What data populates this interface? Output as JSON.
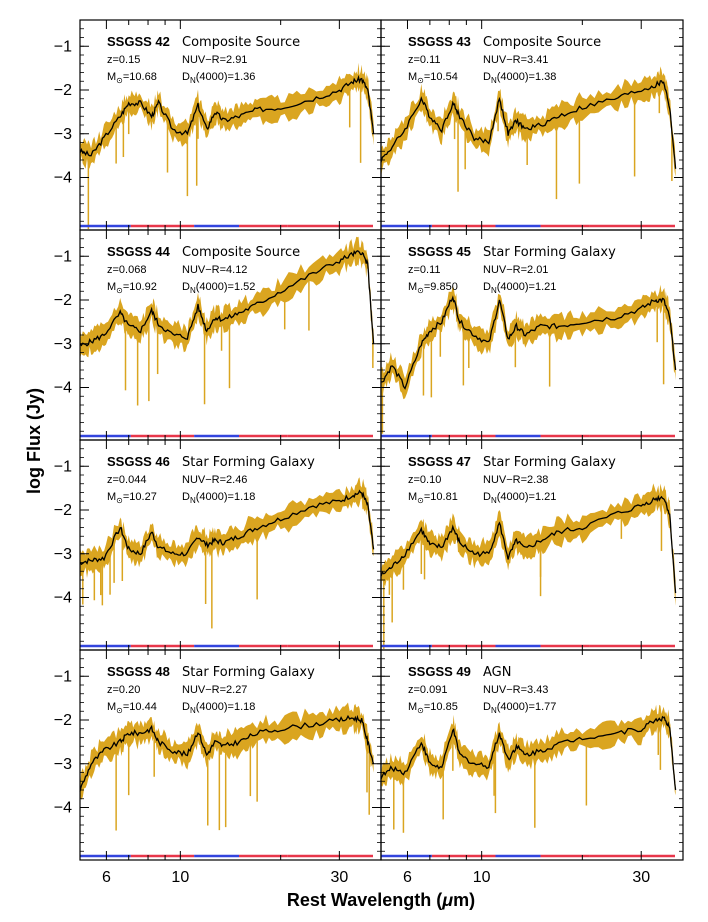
{
  "chart_data": {
    "type": "line",
    "xlabel": "Rest Wavelength (μm)",
    "ylabel": "log Flux (Jy)",
    "x_scale": "log",
    "xlim": [
      5.0,
      40.0
    ],
    "ylim": [
      -5.2,
      -0.4
    ],
    "x_ticks": [
      6,
      10,
      30
    ],
    "y_ticks": [
      -1,
      -2,
      -3,
      -4
    ],
    "colors": {
      "spectrum": "#000000",
      "error_band": "#daa520",
      "band_red": "#e8364a",
      "band_blue": "#3344dd"
    },
    "panels": [
      {
        "name": "SSGSS 42",
        "type_label": "Composite Source",
        "z": "z=0.15",
        "nuv_r": "NUV−R=2.91",
        "mass": "M⊙=10.68",
        "dn": "DN(4000)=1.36",
        "x": [
          5.0,
          5.4,
          5.9,
          6.6,
          7.0,
          7.6,
          8.2,
          8.6,
          9.5,
          10.5,
          11.3,
          12.0,
          12.7,
          13.5,
          15.0,
          17.0,
          20.0,
          25.0,
          30.0,
          33.0,
          35.0,
          36.5,
          38.0
        ],
        "values": [
          -3.4,
          -3.5,
          -3.1,
          -2.6,
          -2.3,
          -2.3,
          -2.6,
          -2.3,
          -2.9,
          -3.0,
          -2.35,
          -2.9,
          -2.5,
          -2.7,
          -2.6,
          -2.45,
          -2.4,
          -2.2,
          -2.0,
          -1.8,
          -1.75,
          -2.0,
          -3.0
        ]
      },
      {
        "name": "SSGSS 43",
        "type_label": "Composite Source",
        "z": "z=0.11",
        "nuv_r": "NUV−R=3.41",
        "mass": "M⊙=10.54",
        "dn": "DN(4000)=1.38",
        "x": [
          5.0,
          5.4,
          5.9,
          6.6,
          7.0,
          7.6,
          8.2,
          8.6,
          9.5,
          10.5,
          11.3,
          12.0,
          12.7,
          13.5,
          15.0,
          17.0,
          20.0,
          25.0,
          30.0,
          33.0,
          35.0,
          36.5,
          38.0
        ],
        "values": [
          -3.6,
          -3.3,
          -2.9,
          -2.2,
          -2.6,
          -2.9,
          -2.3,
          -2.6,
          -3.1,
          -3.2,
          -2.2,
          -3.0,
          -2.7,
          -2.9,
          -2.8,
          -2.6,
          -2.4,
          -2.2,
          -2.0,
          -1.9,
          -1.8,
          -2.4,
          -3.8
        ]
      },
      {
        "name": "SSGSS 44",
        "type_label": "Composite Source",
        "z": "z=0.068",
        "nuv_r": "NUV−R=4.12",
        "mass": "M⊙=10.92",
        "dn": "DN(4000)=1.52",
        "x": [
          5.0,
          5.4,
          5.9,
          6.6,
          7.0,
          7.6,
          8.2,
          8.6,
          9.5,
          10.5,
          11.3,
          12.0,
          12.7,
          13.5,
          15.0,
          17.0,
          20.0,
          25.0,
          30.0,
          33.0,
          35.0,
          36.5,
          38.0
        ],
        "values": [
          -3.05,
          -2.95,
          -2.8,
          -2.3,
          -2.6,
          -2.7,
          -2.25,
          -2.55,
          -2.8,
          -2.85,
          -2.15,
          -2.7,
          -2.4,
          -2.45,
          -2.3,
          -2.1,
          -1.8,
          -1.4,
          -1.1,
          -0.95,
          -0.9,
          -1.2,
          -3.0
        ]
      },
      {
        "name": "SSGSS 45",
        "type_label": "Star Forming Galaxy",
        "z": "z=0.11",
        "nuv_r": "NUV−R=2.01",
        "mass": "M⊙=9.850",
        "dn": "DN(4000)=1.21",
        "x": [
          5.0,
          5.4,
          5.9,
          6.6,
          7.0,
          7.6,
          8.2,
          8.6,
          9.5,
          10.5,
          11.3,
          12.0,
          12.7,
          13.5,
          15.0,
          17.0,
          20.0,
          25.0,
          30.0,
          33.0,
          35.0,
          36.5,
          38.0
        ],
        "values": [
          -3.9,
          -3.5,
          -4.0,
          -3.0,
          -2.7,
          -2.5,
          -1.9,
          -2.5,
          -2.8,
          -3.0,
          -2.0,
          -2.9,
          -2.6,
          -2.8,
          -2.6,
          -2.6,
          -2.5,
          -2.4,
          -2.2,
          -2.0,
          -2.0,
          -2.4,
          -3.6
        ]
      },
      {
        "name": "SSGSS 46",
        "type_label": "Star Forming Galaxy",
        "z": "z=0.044",
        "nuv_r": "NUV−R=2.46",
        "mass": "M⊙=10.27",
        "dn": "DN(4000)=1.18",
        "x": [
          5.0,
          5.4,
          5.9,
          6.6,
          7.0,
          7.6,
          8.2,
          8.6,
          9.5,
          10.5,
          11.3,
          12.0,
          12.7,
          13.5,
          15.0,
          17.0,
          20.0,
          25.0,
          30.0,
          33.0,
          35.0,
          36.5,
          38.0
        ],
        "values": [
          -3.2,
          -3.15,
          -3.1,
          -2.4,
          -2.9,
          -3.0,
          -2.5,
          -2.85,
          -3.0,
          -3.0,
          -2.6,
          -2.8,
          -2.7,
          -2.75,
          -2.6,
          -2.4,
          -2.2,
          -1.9,
          -1.8,
          -1.65,
          -1.6,
          -1.9,
          -2.9
        ]
      },
      {
        "name": "SSGSS 47",
        "type_label": "Star Forming Galaxy",
        "z": "z=0.10",
        "nuv_r": "NUV−R=2.38",
        "mass": "M⊙=10.81",
        "dn": "DN(4000)=1.21",
        "x": [
          5.0,
          5.4,
          5.9,
          6.6,
          7.0,
          7.6,
          8.2,
          8.6,
          9.5,
          10.5,
          11.3,
          12.0,
          12.7,
          13.5,
          15.0,
          17.0,
          20.0,
          25.0,
          30.0,
          33.0,
          35.0,
          36.5,
          38.0
        ],
        "values": [
          -3.5,
          -3.3,
          -3.0,
          -2.45,
          -2.8,
          -2.85,
          -2.4,
          -2.75,
          -3.0,
          -3.0,
          -2.3,
          -3.1,
          -2.7,
          -2.9,
          -2.7,
          -2.5,
          -2.4,
          -2.1,
          -1.9,
          -1.75,
          -1.7,
          -2.1,
          -3.9
        ]
      },
      {
        "name": "SSGSS 48",
        "type_label": "Star Forming Galaxy",
        "z": "z=0.20",
        "nuv_r": "NUV−R=2.27",
        "mass": "M⊙=10.44",
        "dn": "DN(4000)=1.18",
        "x": [
          5.0,
          5.4,
          5.9,
          6.6,
          7.0,
          7.6,
          8.2,
          8.6,
          9.5,
          10.5,
          11.3,
          12.0,
          12.7,
          13.5,
          15.0,
          17.0,
          20.0,
          25.0,
          30.0,
          33.0,
          35.0,
          36.5,
          38.0
        ],
        "values": [
          -3.6,
          -3.0,
          -2.7,
          -2.5,
          -2.3,
          -2.3,
          -2.2,
          -2.5,
          -2.7,
          -2.8,
          -2.25,
          -2.8,
          -2.5,
          -2.6,
          -2.5,
          -2.3,
          -2.2,
          -2.1,
          -2.0,
          -1.95,
          -2.0,
          -2.5,
          -3.0
        ]
      },
      {
        "name": "SSGSS 49",
        "type_label": "AGN",
        "z": "z=0.091",
        "nuv_r": "NUV−R=3.43",
        "mass": "M⊙=10.85",
        "dn": "DN(4000)=1.77",
        "x": [
          5.0,
          5.4,
          5.9,
          6.6,
          7.0,
          7.6,
          8.2,
          8.6,
          9.5,
          10.5,
          11.3,
          12.0,
          12.7,
          13.5,
          15.0,
          17.0,
          20.0,
          25.0,
          30.0,
          33.0,
          35.0,
          36.5,
          38.0
        ],
        "values": [
          -3.3,
          -3.1,
          -3.2,
          -2.5,
          -3.0,
          -3.1,
          -2.2,
          -2.8,
          -3.0,
          -3.05,
          -2.3,
          -2.9,
          -2.6,
          -2.8,
          -2.7,
          -2.55,
          -2.4,
          -2.3,
          -2.2,
          -2.0,
          -1.95,
          -2.2,
          -3.6
        ]
      }
    ],
    "band_segments": [
      {
        "from": 5.0,
        "to": 7.1,
        "color": "blue"
      },
      {
        "from": 7.1,
        "to": 11.0,
        "color": "red"
      },
      {
        "from": 11.0,
        "to": 15.0,
        "color": "blue"
      },
      {
        "from": 15.0,
        "to": 21.0,
        "color": "red"
      },
      {
        "from": 21.0,
        "to": 40.0,
        "color": "red"
      }
    ]
  }
}
